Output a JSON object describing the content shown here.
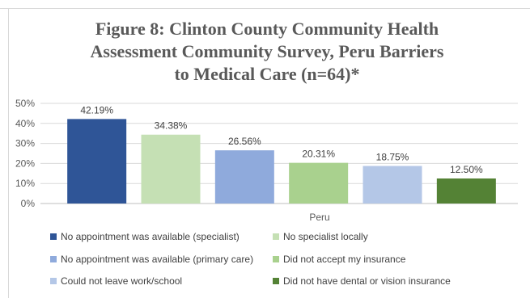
{
  "title": "Figure 8: Clinton County Community Health\nAssessment Community Survey, Peru Barriers\nto Medical Care (n=64)*",
  "chart_data": {
    "type": "bar",
    "title": "Figure 8: Clinton County Community Health Assessment Community Survey, Peru Barriers to Medical Care (n=64)*",
    "categories": [
      "Peru"
    ],
    "xlabel": "",
    "ylabel": "",
    "ylim": [
      0,
      50
    ],
    "yticks": [
      "0%",
      "10%",
      "20%",
      "30%",
      "40%",
      "50%"
    ],
    "grid": true,
    "legend_position": "bottom",
    "series": [
      {
        "name": "No appointment was available (specialist)",
        "values": [
          42.19
        ],
        "label": "42.19%",
        "color": "#2F5597"
      },
      {
        "name": "No specialist locally",
        "values": [
          34.38
        ],
        "label": "34.38%",
        "color": "#C5E0B4"
      },
      {
        "name": "No appointment was available (primary care)",
        "values": [
          26.56
        ],
        "label": "26.56%",
        "color": "#8FAADC"
      },
      {
        "name": "Did not accept my insurance",
        "values": [
          20.31
        ],
        "label": "20.31%",
        "color": "#A9D18E"
      },
      {
        "name": "Could not leave work/school",
        "values": [
          18.75
        ],
        "label": "18.75%",
        "color": "#B4C7E7"
      },
      {
        "name": "Did not have dental or vision insurance",
        "values": [
          12.5
        ],
        "label": "12.50%",
        "color": "#548235"
      }
    ]
  }
}
